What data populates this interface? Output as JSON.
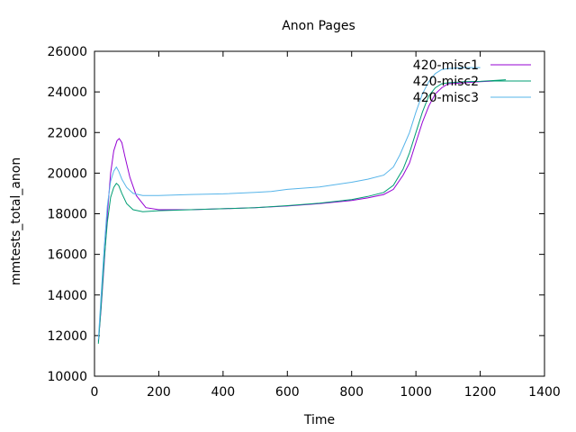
{
  "chart_data": {
    "type": "line",
    "title": "Anon Pages",
    "xlabel": "Time",
    "ylabel": "mmtests_total_anon",
    "xlim": [
      0,
      1400
    ],
    "ylim": [
      10000,
      26000
    ],
    "xticks": [
      0,
      200,
      400,
      600,
      800,
      1000,
      1200,
      1400
    ],
    "yticks": [
      10000,
      12000,
      14000,
      16000,
      18000,
      20000,
      22000,
      24000,
      26000
    ],
    "grid": false,
    "legend_position": "top-right",
    "series": [
      {
        "name": "420-misc1",
        "color": "#9400d3",
        "points": [
          [
            12,
            11700
          ],
          [
            20,
            13200
          ],
          [
            30,
            15500
          ],
          [
            40,
            18000
          ],
          [
            50,
            20000
          ],
          [
            60,
            21100
          ],
          [
            70,
            21600
          ],
          [
            77,
            21700
          ],
          [
            85,
            21500
          ],
          [
            95,
            20800
          ],
          [
            110,
            19800
          ],
          [
            130,
            18900
          ],
          [
            160,
            18300
          ],
          [
            200,
            18200
          ],
          [
            300,
            18200
          ],
          [
            400,
            18250
          ],
          [
            500,
            18300
          ],
          [
            600,
            18380
          ],
          [
            700,
            18500
          ],
          [
            800,
            18650
          ],
          [
            850,
            18780
          ],
          [
            900,
            18950
          ],
          [
            930,
            19200
          ],
          [
            960,
            19900
          ],
          [
            980,
            20500
          ],
          [
            1000,
            21500
          ],
          [
            1020,
            22500
          ],
          [
            1040,
            23300
          ],
          [
            1060,
            23900
          ],
          [
            1080,
            24200
          ],
          [
            1100,
            24400
          ],
          [
            1150,
            24450
          ],
          [
            1200,
            24500
          ],
          [
            1260,
            24550
          ]
        ]
      },
      {
        "name": "420-misc2",
        "color": "#009e73",
        "points": [
          [
            12,
            11600
          ],
          [
            20,
            13300
          ],
          [
            30,
            15700
          ],
          [
            40,
            17600
          ],
          [
            50,
            18800
          ],
          [
            60,
            19300
          ],
          [
            68,
            19500
          ],
          [
            75,
            19400
          ],
          [
            85,
            19000
          ],
          [
            100,
            18500
          ],
          [
            120,
            18200
          ],
          [
            150,
            18100
          ],
          [
            200,
            18150
          ],
          [
            300,
            18200
          ],
          [
            400,
            18250
          ],
          [
            500,
            18300
          ],
          [
            600,
            18400
          ],
          [
            700,
            18520
          ],
          [
            800,
            18700
          ],
          [
            850,
            18850
          ],
          [
            900,
            19050
          ],
          [
            930,
            19400
          ],
          [
            960,
            20200
          ],
          [
            980,
            21000
          ],
          [
            1000,
            22000
          ],
          [
            1020,
            23000
          ],
          [
            1040,
            23800
          ],
          [
            1060,
            24200
          ],
          [
            1080,
            24400
          ],
          [
            1100,
            24450
          ],
          [
            1150,
            24500
          ],
          [
            1200,
            24520
          ],
          [
            1280,
            24600
          ]
        ]
      },
      {
        "name": "420-misc3",
        "color": "#56b4e9",
        "points": [
          [
            12,
            11800
          ],
          [
            20,
            13800
          ],
          [
            30,
            16300
          ],
          [
            40,
            18400
          ],
          [
            50,
            19600
          ],
          [
            60,
            20100
          ],
          [
            68,
            20300
          ],
          [
            75,
            20100
          ],
          [
            85,
            19700
          ],
          [
            100,
            19300
          ],
          [
            120,
            19000
          ],
          [
            150,
            18900
          ],
          [
            200,
            18900
          ],
          [
            300,
            18950
          ],
          [
            400,
            18980
          ],
          [
            500,
            19050
          ],
          [
            550,
            19100
          ],
          [
            600,
            19200
          ],
          [
            700,
            19320
          ],
          [
            800,
            19550
          ],
          [
            850,
            19700
          ],
          [
            900,
            19900
          ],
          [
            930,
            20300
          ],
          [
            950,
            20900
          ],
          [
            980,
            22000
          ],
          [
            1000,
            23000
          ],
          [
            1020,
            23900
          ],
          [
            1040,
            24500
          ],
          [
            1060,
            24900
          ],
          [
            1080,
            25100
          ],
          [
            1100,
            25150
          ],
          [
            1150,
            25200
          ],
          [
            1200,
            25200
          ]
        ]
      }
    ]
  }
}
